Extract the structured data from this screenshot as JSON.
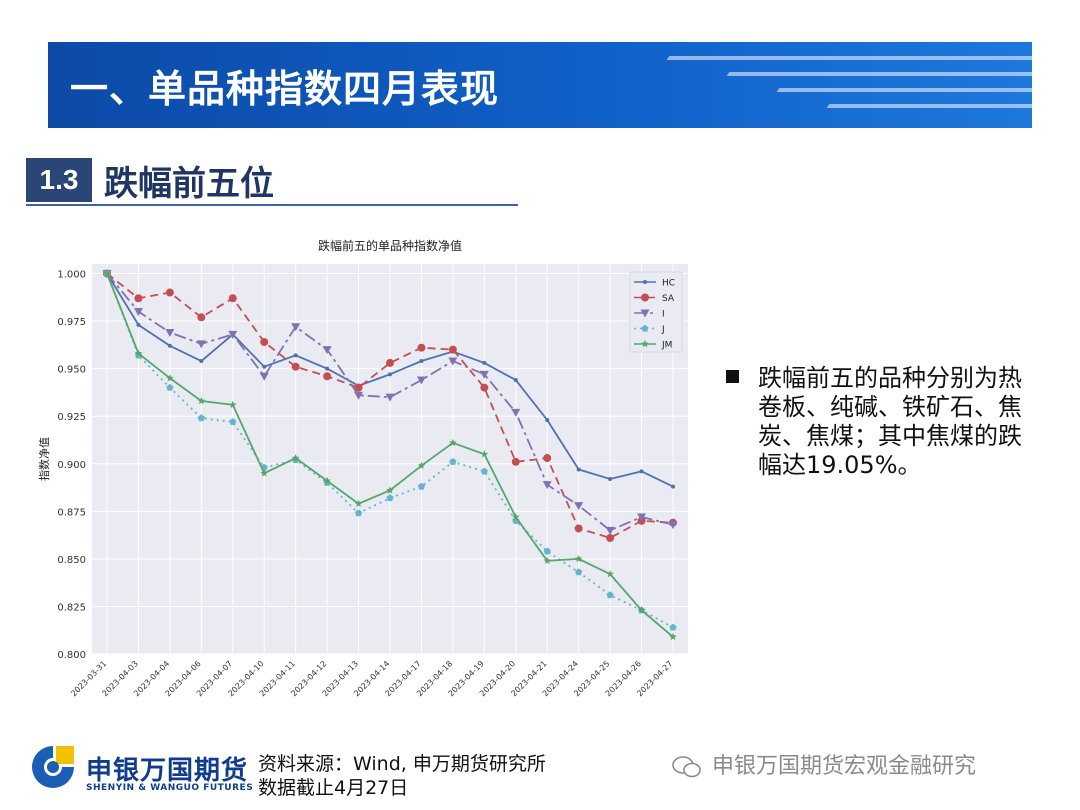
{
  "banner": {
    "title": "一、单品种指数四月表现"
  },
  "section": {
    "number": "1.3",
    "title": "跌幅前五位"
  },
  "bullet": {
    "text": "跌幅前五的品种分别为热卷板、纯碱、铁矿石、焦炭、焦煤；其中焦煤的跌幅达19.05%。"
  },
  "footer": {
    "logo_cn": "申银万国期货",
    "logo_en": "SHENYIN & WANGUO FUTURES",
    "source_line1": "资料来源：Wind, 申万期货研究所",
    "source_line2": "数据截止4月27日",
    "watermark": "申银万国期货宏观金融研究"
  },
  "colors": {
    "banner": "#1060c8",
    "section_box": "#2a4677",
    "plot_bg": "#eaeaf2"
  },
  "chart_data": {
    "type": "line",
    "title": "跌幅前五的单品种指数净值",
    "ylabel": "指数净值",
    "xlabel": "",
    "ylim": [
      0.8,
      1.005
    ],
    "yticks": [
      "0.800",
      "0.825",
      "0.850",
      "0.875",
      "0.900",
      "0.925",
      "0.950",
      "0.975",
      "1.000"
    ],
    "grid": true,
    "legend_position": "top-right",
    "x": [
      "2023-03-31",
      "2023-04-03",
      "2023-04-04",
      "2023-04-06",
      "2023-04-07",
      "2023-04-10",
      "2023-04-11",
      "2023-04-12",
      "2023-04-13",
      "2023-04-14",
      "2023-04-17",
      "2023-04-18",
      "2023-04-19",
      "2023-04-20",
      "2023-04-21",
      "2023-04-24",
      "2023-04-25",
      "2023-04-26",
      "2023-04-27"
    ],
    "series": [
      {
        "name": "HC",
        "color": "#4c72b0",
        "marker": "dot",
        "dash": "",
        "values": [
          1.0,
          0.973,
          0.962,
          0.954,
          0.968,
          0.951,
          0.957,
          0.95,
          0.941,
          0.947,
          0.954,
          0.959,
          0.953,
          0.944,
          0.923,
          0.897,
          0.892,
          0.896,
          0.888
        ]
      },
      {
        "name": "SA",
        "color": "#c44e52",
        "marker": "circle",
        "dash": "8,5",
        "values": [
          1.0,
          0.987,
          0.99,
          0.977,
          0.987,
          0.964,
          0.951,
          0.946,
          0.94,
          0.953,
          0.961,
          0.96,
          0.94,
          0.901,
          0.903,
          0.866,
          0.861,
          0.87,
          0.869
        ]
      },
      {
        "name": "I",
        "color": "#8172b2",
        "marker": "triangle",
        "dash": "12,4,3,4",
        "values": [
          1.0,
          0.98,
          0.969,
          0.963,
          0.968,
          0.946,
          0.972,
          0.96,
          0.936,
          0.935,
          0.944,
          0.954,
          0.947,
          0.927,
          0.889,
          0.878,
          0.865,
          0.872,
          0.868
        ]
      },
      {
        "name": "J",
        "color": "#64b5cd",
        "marker": "pentagon",
        "dash": "2,4",
        "values": [
          1.0,
          0.957,
          0.94,
          0.924,
          0.922,
          0.898,
          0.902,
          0.89,
          0.874,
          0.882,
          0.888,
          0.901,
          0.896,
          0.87,
          0.854,
          0.843,
          0.831,
          0.823,
          0.814
        ]
      },
      {
        "name": "JM",
        "color": "#55a868",
        "marker": "star",
        "dash": "",
        "values": [
          1.0,
          0.958,
          0.945,
          0.933,
          0.931,
          0.895,
          0.903,
          0.891,
          0.879,
          0.886,
          0.899,
          0.911,
          0.905,
          0.872,
          0.849,
          0.85,
          0.842,
          0.823,
          0.809
        ]
      }
    ]
  }
}
